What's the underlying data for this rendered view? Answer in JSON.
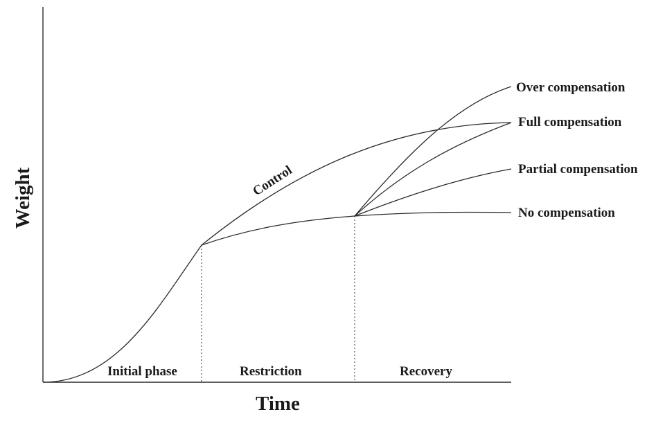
{
  "axes": {
    "y_title": "Weight",
    "x_title": "Time"
  },
  "curves": {
    "control_label": "Control"
  },
  "outcomes": {
    "over": "Over compensation",
    "full": "Full compensation",
    "partial": "Partial compensation",
    "none": "No compensation"
  },
  "phases": {
    "initial": "Initial phase",
    "restriction": "Restriction",
    "recovery": "Recovery"
  }
}
